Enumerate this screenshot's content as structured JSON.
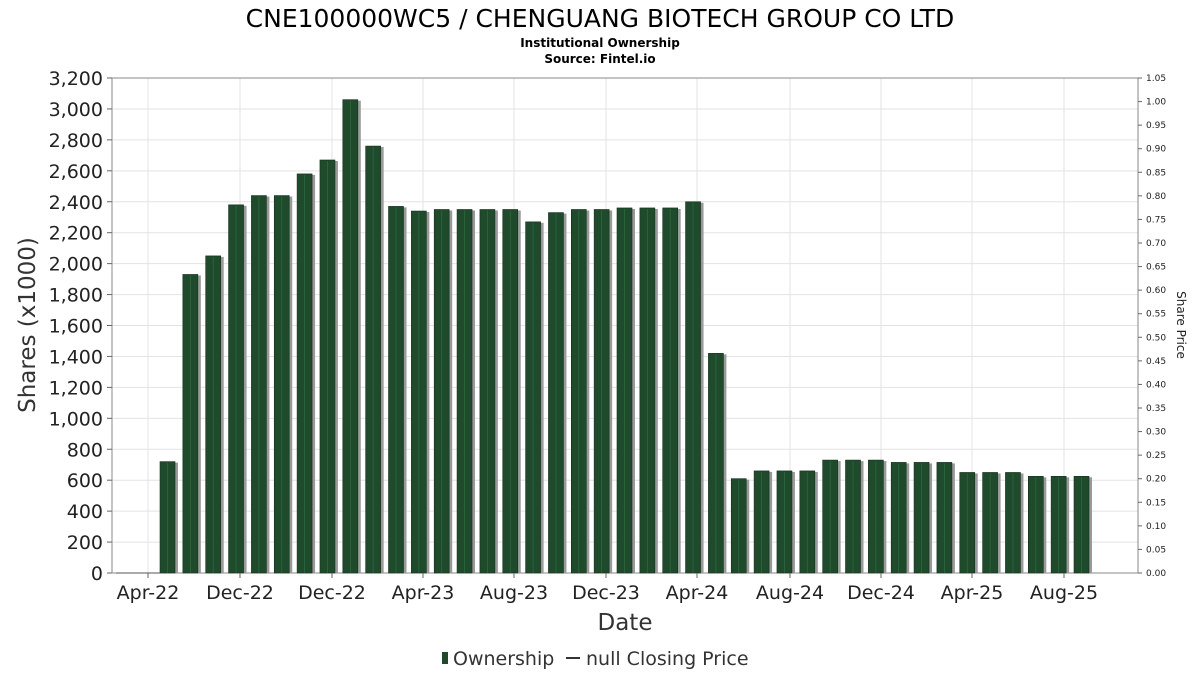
{
  "chart_data": {
    "type": "bar",
    "title": "CNE100000WC5 / CHENGUANG BIOTECH GROUP CO LTD",
    "subtitle_lines": [
      "Institutional Ownership",
      "Source: Fintel.io"
    ],
    "xlabel": "Date",
    "ylabel": "Shares (x1000)",
    "ylabel_right": "Share Price",
    "ylim": [
      0,
      3200
    ],
    "ylim_right": [
      0,
      1.05
    ],
    "yticks": [
      "0",
      "200",
      "400",
      "600",
      "800",
      "1,000",
      "1,200",
      "1,400",
      "1,600",
      "1,800",
      "2,000",
      "2,200",
      "2,400",
      "2,600",
      "2,800",
      "3,000",
      "3,200"
    ],
    "yticks_right": [
      "0.00",
      "0.05",
      "0.10",
      "0.15",
      "0.20",
      "0.25",
      "0.30",
      "0.35",
      "0.40",
      "0.45",
      "0.50",
      "0.55",
      "0.60",
      "0.65",
      "0.70",
      "0.75",
      "0.80",
      "0.85",
      "0.90",
      "0.95",
      "1.00",
      "1.05"
    ],
    "xtick_labels": [
      "Apr-22",
      "Dec-22",
      "Dec-22",
      "Apr-23",
      "Aug-23",
      "Dec-23",
      "Apr-24",
      "Aug-24",
      "Dec-24",
      "Apr-25",
      "Aug-25"
    ],
    "grid": true,
    "legend_position": "bottom-center",
    "series": [
      {
        "name": "Ownership",
        "color": "#1f4a2c",
        "values": [
          720,
          1930,
          2050,
          2380,
          2440,
          2440,
          2580,
          2670,
          3060,
          2760,
          2370,
          2340,
          2350,
          2350,
          2350,
          2350,
          2270,
          2330,
          2350,
          2350,
          2360,
          2360,
          2360,
          2400,
          1420,
          610,
          660,
          660,
          660,
          730,
          730,
          730,
          715,
          715,
          715,
          650,
          650,
          650,
          625,
          625,
          625
        ]
      }
    ],
    "legend": [
      {
        "label": "Ownership",
        "marker": "bar",
        "color": "#1f4a2c"
      },
      {
        "label": "null Closing Price",
        "marker": "line",
        "color": "#333333"
      }
    ]
  }
}
